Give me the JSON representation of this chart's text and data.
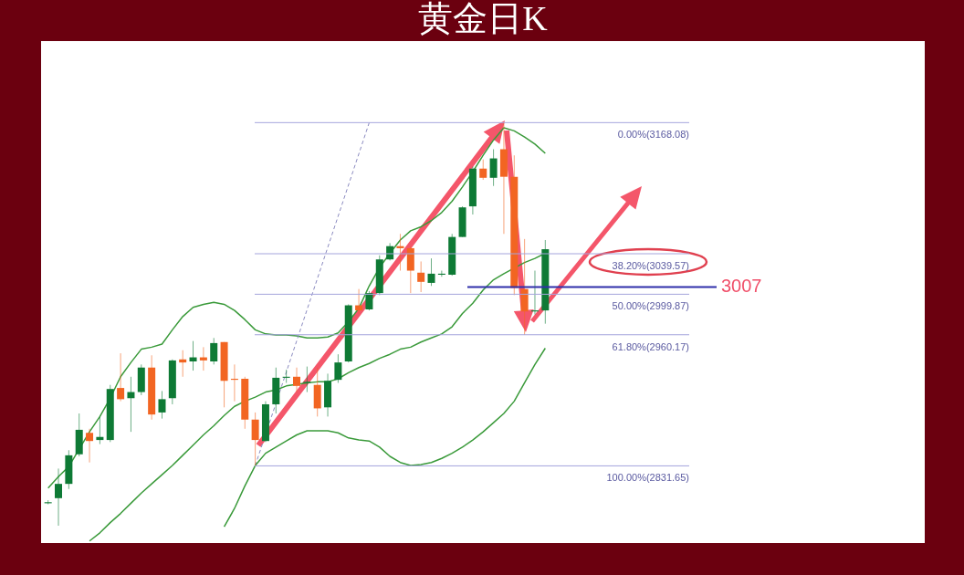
{
  "chart_data": {
    "type": "candlestick",
    "title": "黄金日K",
    "categories": [
      null,
      null,
      null,
      null,
      null,
      null,
      null,
      null,
      null,
      null,
      null,
      null,
      null,
      null,
      null,
      null,
      null,
      null,
      null,
      null,
      null,
      null,
      null,
      null,
      null,
      null,
      null,
      null,
      null,
      null,
      null,
      null,
      null,
      null,
      null,
      null,
      null,
      null,
      null,
      null,
      null,
      null,
      null,
      null,
      null,
      null,
      null,
      null,
      null
    ],
    "ohlc": [
      [
        2795,
        2798,
        2794,
        2796
      ],
      [
        2800,
        2829,
        2773,
        2814
      ],
      [
        2814,
        2847,
        2809,
        2842
      ],
      [
        2843,
        2883,
        2841,
        2867
      ],
      [
        2864,
        2868,
        2835,
        2856
      ],
      [
        2857,
        2880,
        2853,
        2860
      ],
      [
        2857,
        2911,
        2855,
        2907
      ],
      [
        2908,
        2942,
        2895,
        2897
      ],
      [
        2898,
        2919,
        2865,
        2904
      ],
      [
        2904,
        2931,
        2901,
        2928
      ],
      [
        2928,
        2940,
        2877,
        2882
      ],
      [
        2884,
        2905,
        2878,
        2897
      ],
      [
        2898,
        2936,
        2892,
        2935
      ],
      [
        2936,
        2945,
        2919,
        2933
      ],
      [
        2934,
        2954,
        2925,
        2938
      ],
      [
        2938,
        2948,
        2925,
        2935
      ],
      [
        2934,
        2957,
        2931,
        2952
      ],
      [
        2953,
        2953,
        2889,
        2915
      ],
      [
        2917,
        2931,
        2895,
        2916
      ],
      [
        2917,
        2919,
        2868,
        2877
      ],
      [
        2877,
        2884,
        2832,
        2857
      ],
      [
        2856,
        2895,
        2855,
        2892
      ],
      [
        2892,
        2928,
        2883,
        2918
      ],
      [
        2918,
        2926,
        2913,
        2919
      ],
      [
        2919,
        2928,
        2904,
        2910
      ],
      [
        2913,
        2929,
        2904,
        2914
      ],
      [
        2911,
        2928,
        2880,
        2888
      ],
      [
        2889,
        2922,
        2880,
        2915
      ],
      [
        2916,
        2941,
        2913,
        2933
      ],
      [
        2934,
        2990,
        2933,
        2989
      ],
      [
        2989,
        3005,
        2981,
        2984
      ],
      [
        2985,
        3003,
        2984,
        3001
      ],
      [
        3001,
        3038,
        2999,
        3034
      ],
      [
        3034,
        3050,
        3033,
        3047
      ],
      [
        3047,
        3059,
        3023,
        3045
      ],
      [
        3045,
        3047,
        3001,
        3023
      ],
      [
        3021,
        3032,
        3002,
        3012
      ],
      [
        3011,
        3035,
        3008,
        3020
      ],
      [
        3019,
        3023,
        3017,
        3020
      ],
      [
        3019,
        3059,
        3018,
        3056
      ],
      [
        3056,
        3086,
        3056,
        3085
      ],
      [
        3086,
        3125,
        3078,
        3123
      ],
      [
        3123,
        3132,
        3112,
        3114
      ],
      [
        3114,
        3142,
        3106,
        3133
      ],
      [
        3142,
        3168,
        3059,
        3115
      ],
      [
        3115,
        3136,
        2999,
        3006
      ],
      [
        3005,
        3054,
        2960,
        2983
      ],
      [
        2983,
        3023,
        2980,
        2984
      ],
      [
        2984,
        3053,
        2971,
        3044
      ]
    ],
    "colors": [
      "#0e7a35",
      "#0e7a35",
      "#0e7a35",
      "#0e7a35",
      "#f26522",
      "#0e7a35",
      "#0e7a35",
      "#f26522",
      "#0e7a35",
      "#0e7a35",
      "#f26522",
      "#0e7a35",
      "#0e7a35",
      "#f26522",
      "#0e7a35",
      "#f26522",
      "#0e7a35",
      "#f26522",
      "#f26522",
      "#f26522",
      "#f26522",
      "#0e7a35",
      "#0e7a35",
      "#0e7a35",
      "#f26522",
      "#0e7a35",
      "#f26522",
      "#0e7a35",
      "#0e7a35",
      "#0e7a35",
      "#f26522",
      "#0e7a35",
      "#0e7a35",
      "#0e7a35",
      "#f26522",
      "#f26522",
      "#f26522",
      "#0e7a35",
      "#0e7a35",
      "#0e7a35",
      "#0e7a35",
      "#0e7a35",
      "#f26522",
      "#0e7a35",
      "#f26522",
      "#f26522",
      "#f26522",
      "#0e7a35",
      "#0e7a35"
    ],
    "series": [
      {
        "type": "line",
        "color": "#3a9a3a",
        "values": [
          2810,
          2821,
          2831,
          2848,
          2865,
          2880,
          2898,
          2919,
          2933,
          2946,
          2948,
          2951,
          2965,
          2978,
          2987,
          2990,
          2992,
          2990,
          2984,
          2975,
          2965,
          2961,
          2960,
          2960,
          2959,
          2957,
          2957,
          2958,
          2962,
          2973,
          2986,
          3008,
          3026,
          3040,
          3053,
          3062,
          3066,
          3072,
          3080,
          3091,
          3105,
          3120,
          3136,
          3151,
          3163,
          3160,
          3154,
          3147,
          3138
        ]
      },
      {
        "type": "line",
        "color": "#3a9a3a",
        "values": [
          null,
          null,
          null,
          null,
          2758,
          2766,
          2776,
          2785,
          2795,
          2805,
          2814,
          2823,
          2832,
          2842,
          2852,
          2862,
          2871,
          2881,
          2890,
          2895,
          2899,
          2904,
          2906,
          2910,
          null,
          2913,
          2914,
          2914,
          2917,
          2923,
          2928,
          2932,
          2937,
          2941,
          2946,
          2948,
          2953,
          2957,
          2961,
          2968,
          2981,
          2991,
          3004,
          3014,
          3020,
          null,
          3031,
          3035,
          3040
        ]
      },
      {
        "type": "line",
        "color": "#8a8ac0",
        "line_style": "dashed",
        "values": [
          null,
          null,
          null,
          null,
          null,
          null,
          null,
          null,
          null,
          null,
          null,
          null,
          null,
          null,
          null,
          null,
          null,
          null,
          null,
          null,
          2832,
          null,
          null,
          null,
          null,
          null,
          null,
          null,
          null,
          null,
          null,
          3168,
          null,
          null,
          null,
          null,
          null,
          null,
          null,
          null,
          null,
          null,
          null,
          null,
          null,
          null,
          null,
          null,
          null
        ]
      },
      {
        "type": "line",
        "color": "#3a9a3a",
        "values": [
          null,
          null,
          null,
          null,
          null,
          null,
          null,
          null,
          null,
          null,
          null,
          null,
          null,
          null,
          null,
          null,
          null,
          2772,
          2790,
          2812,
          2832,
          2844,
          2850,
          2856,
          2862,
          2866,
          2866,
          2866,
          2864,
          2859,
          2857,
          2856,
          2850,
          2841,
          2835,
          2832,
          2833,
          2835,
          2839,
          2844,
          2850,
          2857,
          2865,
          2874,
          2883,
          2895,
          2913,
          2931,
          2947
        ]
      }
    ],
    "ylim": [
      2756,
      3248
    ],
    "tick_labels": false,
    "ref_lines": [
      {
        "axis": "y",
        "value": 3168.08,
        "label": "0.00%(3168.08)",
        "color": "#a5a5dc"
      },
      {
        "axis": "y",
        "value": 3039.57,
        "label": "38.20%(3039.57)",
        "color": "#a5a5dc"
      },
      {
        "axis": "y",
        "value": 2999.87,
        "label": "50.00%(2999.87)",
        "color": "#a5a5dc"
      },
      {
        "axis": "y",
        "value": 2960.17,
        "label": "61.80%(2960.17)",
        "color": "#a5a5dc"
      },
      {
        "axis": "y",
        "value": 2831.65,
        "label": "100.00%(2831.65)",
        "color": "#a5a5dc"
      },
      {
        "axis": "y",
        "value": 3007,
        "label": "3007",
        "color": "#2e2eaa"
      }
    ]
  }
}
